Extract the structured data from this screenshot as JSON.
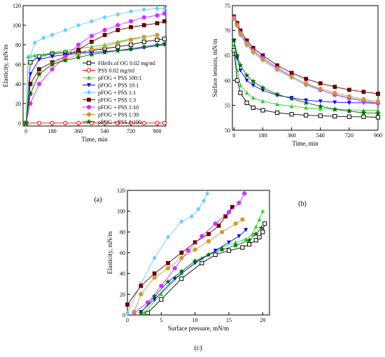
{
  "chart_data": [
    {
      "panel_label": "(a)",
      "type": "line",
      "xlabel": "Time, min",
      "ylabel": "Elasticity, mN/m",
      "xlim": [
        -20,
        960
      ],
      "ylim": [
        -3,
        120
      ],
      "xticks": [
        0,
        180,
        360,
        540,
        720,
        900
      ],
      "yticks": [
        0,
        20,
        40,
        60,
        80,
        100,
        120
      ],
      "legend_position": "lower-right",
      "series": [
        {
          "name": "Fibrils of OG 0.02 mg/ml",
          "color": "#000000",
          "marker": "open-square",
          "x": [
            0,
            30,
            90,
            180,
            270,
            360,
            450,
            540,
            630,
            720,
            810,
            900,
            950
          ],
          "y": [
            0,
            62,
            68,
            71,
            72,
            72,
            74,
            76,
            78,
            80,
            83,
            85,
            86
          ]
        },
        {
          "name": "PSS 0.02 mg/ml",
          "color": "#ff0000",
          "marker": "open-circle",
          "x": [
            0,
            90,
            180,
            270,
            360,
            450,
            540,
            630,
            720,
            810,
            900,
            950
          ],
          "y": [
            0,
            0,
            0,
            0,
            0,
            0,
            0,
            0,
            0,
            0,
            0,
            0
          ]
        },
        {
          "name": "pFOG + PSS 100:1",
          "color": "#33cc33",
          "marker": "triangle-up",
          "x": [
            0,
            15,
            60,
            120,
            180,
            270,
            360,
            450,
            540,
            630,
            720,
            810,
            900
          ],
          "y": [
            0,
            68,
            69,
            70,
            72,
            74,
            76,
            78,
            80,
            83,
            86,
            88,
            90
          ]
        },
        {
          "name": "pFOG + PSS 10:1",
          "color": "#0000ff",
          "marker": "triangle-down",
          "x": [
            0,
            30,
            90,
            180,
            270,
            360,
            450,
            540,
            630,
            720,
            810,
            900,
            950
          ],
          "y": [
            0,
            50,
            65,
            68,
            70,
            71,
            72,
            73,
            74,
            75,
            77,
            79,
            80
          ]
        },
        {
          "name": "pFOG + PSS 1:1",
          "color": "#66ccff",
          "marker": "diamond",
          "x": [
            0,
            30,
            60,
            120,
            180,
            270,
            360,
            450,
            540,
            630,
            720,
            810,
            900,
            950
          ],
          "y": [
            0,
            68,
            82,
            87,
            90,
            95,
            100,
            104,
            108,
            111,
            114,
            116,
            117,
            117
          ]
        },
        {
          "name": "pFOG + PSS 1:3",
          "color": "#660000",
          "marker": "filled-square",
          "x": [
            0,
            30,
            90,
            180,
            270,
            360,
            450,
            540,
            630,
            720,
            810,
            900,
            950
          ],
          "y": [
            0,
            40,
            55,
            62,
            68,
            75,
            83,
            90,
            95,
            98,
            100,
            102,
            104
          ]
        },
        {
          "name": "pFOG + PSS 1:10",
          "color": "#cc33ff",
          "marker": "filled-circle",
          "x": [
            0,
            30,
            90,
            180,
            270,
            360,
            450,
            540,
            630,
            720,
            810,
            900,
            950
          ],
          "y": [
            0,
            20,
            40,
            55,
            68,
            80,
            89,
            95,
            100,
            104,
            108,
            110,
            112
          ]
        },
        {
          "name": "pFOG + PSS 1:30",
          "color": "#cc9933",
          "marker": "filled-circle",
          "x": [
            0,
            30,
            90,
            180,
            270,
            360,
            450,
            540,
            630,
            720,
            810,
            900
          ],
          "y": [
            0,
            30,
            50,
            60,
            65,
            70,
            75,
            78,
            82,
            85,
            88,
            90
          ]
        },
        {
          "name": "pFOG + PSS 1:100",
          "color": "#006600",
          "marker": "star",
          "x": [
            0,
            30,
            90,
            180,
            270,
            360,
            450,
            540,
            630,
            720,
            810,
            900,
            950
          ],
          "y": [
            0,
            30,
            50,
            60,
            64,
            67,
            70,
            72,
            74,
            76,
            78,
            80,
            81
          ]
        }
      ]
    },
    {
      "panel_label": "(b)",
      "type": "line",
      "xlabel": "Time, min",
      "ylabel": "Surface tension, mN/m",
      "xlim": [
        -10,
        900
      ],
      "ylim": [
        50,
        75
      ],
      "xticks": [
        0,
        180,
        360,
        540,
        720,
        900
      ],
      "yticks": [
        50,
        55,
        60,
        65,
        70,
        75
      ],
      "series": [
        {
          "name": "Fibrils of OG 0.02 mg/ml",
          "color": "#000000",
          "marker": "open-square",
          "x": [
            0,
            20,
            40,
            80,
            120,
            180,
            270,
            360,
            450,
            540,
            630,
            720,
            810,
            900
          ],
          "y": [
            66,
            60,
            57.5,
            55.5,
            54.5,
            54.0,
            53.5,
            53.2,
            53.0,
            52.9,
            52.8,
            52.7,
            52.7,
            52.6
          ]
        },
        {
          "name": "pFOG + PSS 100:1",
          "color": "#33cc33",
          "marker": "triangle-up",
          "x": [
            0,
            20,
            40,
            80,
            120,
            180,
            270,
            360,
            450,
            540,
            630,
            720,
            810,
            900
          ],
          "y": [
            67,
            62,
            59,
            57.5,
            56.5,
            55.8,
            55.2,
            54.8,
            54.5,
            54.3,
            54.2,
            54.1,
            54.0,
            54.0
          ]
        },
        {
          "name": "pFOG + PSS 10:1",
          "color": "#0000ff",
          "marker": "triangle-down",
          "x": [
            0,
            20,
            40,
            80,
            120,
            180,
            270,
            360,
            450,
            540,
            630,
            720,
            810,
            900
          ],
          "y": [
            68,
            64.5,
            62,
            60,
            59,
            58,
            57,
            56.5,
            56,
            55.8,
            55.6,
            55.5,
            55.5,
            55.4
          ]
        },
        {
          "name": "pFOG + PSS 1:1",
          "color": "#66ccff",
          "marker": "diamond",
          "x": [
            0,
            20,
            40,
            80,
            120,
            180,
            270,
            360,
            450,
            540,
            630,
            720,
            810,
            900
          ],
          "y": [
            72.5,
            71,
            69,
            67,
            65.5,
            64,
            62,
            60.5,
            59,
            58,
            57.2,
            56.5,
            56,
            55.5
          ]
        },
        {
          "name": "pFOG + PSS 1:3",
          "color": "#660000",
          "marker": "filled-square",
          "x": [
            0,
            20,
            40,
            80,
            120,
            180,
            270,
            360,
            450,
            540,
            630,
            720,
            810,
            900
          ],
          "y": [
            72.8,
            71.5,
            70,
            68,
            66.5,
            65,
            63,
            61.5,
            60.3,
            59.4,
            58.7,
            58.1,
            57.7,
            57.3
          ]
        },
        {
          "name": "pFOG + PSS 1:10",
          "color": "#cc33ff",
          "marker": "filled-circle",
          "x": [
            0,
            20,
            40,
            80,
            120,
            180,
            270,
            360,
            450,
            540,
            630,
            720,
            810,
            900
          ],
          "y": [
            72.6,
            71.2,
            69.5,
            67.5,
            66,
            64.5,
            62.5,
            60.8,
            59.3,
            58.1,
            57.1,
            56.4,
            55.8,
            55.4
          ]
        },
        {
          "name": "pFOG + PSS 1:30",
          "color": "#cc9933",
          "marker": "filled-circle",
          "x": [
            0,
            20,
            40,
            80,
            120,
            180,
            270,
            360,
            450,
            540,
            630,
            720,
            810,
            900
          ],
          "y": [
            72.4,
            71,
            69.3,
            67.3,
            65.8,
            64.2,
            62.3,
            60.7,
            59.4,
            58.3,
            57.5,
            56.8,
            56.2,
            55.8
          ]
        },
        {
          "name": "pFOG + PSS 1:100",
          "color": "#006600",
          "marker": "star",
          "x": [
            0,
            20,
            40,
            80,
            120,
            180,
            270,
            360,
            450,
            540,
            630,
            720,
            810,
            900
          ],
          "y": [
            68,
            65,
            63,
            61,
            59.8,
            58.5,
            57.2,
            56.3,
            55.5,
            54.8,
            54.2,
            53.8,
            53.5,
            53.4
          ]
        }
      ]
    },
    {
      "panel_label": "(c)",
      "type": "line",
      "xlabel": "Surface pressure, mN/m",
      "ylabel": "Elasticity, mN/m",
      "xlim": [
        0,
        21
      ],
      "ylim": [
        0,
        120
      ],
      "xticks": [
        0,
        5,
        10,
        15,
        20
      ],
      "yticks": [
        0,
        20,
        40,
        60,
        80,
        100,
        120
      ],
      "series": [
        {
          "name": "Fibrils of OG 0.02 mg/ml",
          "color": "#000000",
          "marker": "open-square",
          "x": [
            3,
            5,
            8,
            11,
            13,
            15,
            17,
            18,
            19,
            19.5,
            20,
            20.3
          ],
          "y": [
            2,
            15,
            35,
            50,
            58,
            62,
            65,
            68,
            72,
            75,
            80,
            88
          ]
        },
        {
          "name": "pFOG + PSS 100:1",
          "color": "#33cc33",
          "marker": "triangle-up",
          "x": [
            2.5,
            5,
            8,
            11,
            14,
            16,
            17.5,
            18.5,
            19,
            19.5,
            20
          ],
          "y": [
            2,
            20,
            40,
            55,
            65,
            70,
            73,
            78,
            85,
            92,
            100
          ]
        },
        {
          "name": "pFOG + PSS 10:1",
          "color": "#0000ff",
          "marker": "triangle-down",
          "x": [
            2,
            4,
            7,
            10,
            13,
            15,
            16.5,
            17.5
          ],
          "y": [
            3,
            15,
            35,
            50,
            62,
            70,
            76,
            82
          ]
        },
        {
          "name": "pFOG + PSS 1:1",
          "color": "#66ccff",
          "marker": "diamond",
          "x": [
            0,
            2,
            4,
            6,
            8,
            9.5,
            10.5,
            11.3,
            11.8
          ],
          "y": [
            2,
            30,
            55,
            75,
            90,
            95,
            102,
            110,
            117
          ]
        },
        {
          "name": "pFOG + PSS 1:3",
          "color": "#660000",
          "marker": "filled-square",
          "x": [
            0,
            2,
            4,
            6,
            8,
            10,
            12,
            13.5,
            14.5,
            15.5
          ],
          "y": [
            10,
            28,
            40,
            50,
            60,
            70,
            78,
            86,
            95,
            104
          ]
        },
        {
          "name": "pFOG + PSS 1:10",
          "color": "#cc33ff",
          "marker": "filled-circle",
          "x": [
            1,
            3,
            5,
            7,
            9,
            11,
            13,
            15,
            16.5,
            17.3
          ],
          "y": [
            2,
            12,
            28,
            45,
            62,
            76,
            88,
            99,
            108,
            117
          ]
        },
        {
          "name": "pFOG + PSS 1:30",
          "color": "#cc9933",
          "marker": "filled-circle",
          "x": [
            1,
            2,
            4,
            6,
            8,
            10,
            12,
            14,
            16,
            17
          ],
          "y": [
            3,
            20,
            36,
            45,
            55,
            63,
            71,
            80,
            88,
            92
          ]
        },
        {
          "name": "pFOG + PSS 1:100",
          "color": "#006600",
          "marker": "star",
          "x": [
            2,
            4,
            6,
            8,
            10,
            12,
            14,
            16,
            18,
            19,
            19.8
          ],
          "y": [
            2,
            18,
            32,
            42,
            52,
            58,
            63,
            67,
            72,
            78,
            84
          ]
        }
      ]
    }
  ]
}
